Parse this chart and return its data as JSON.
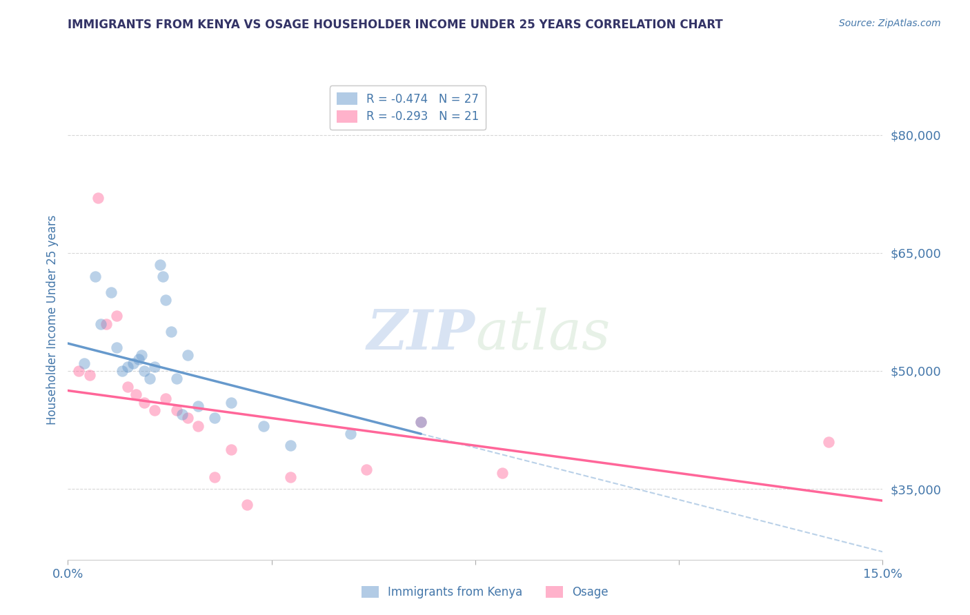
{
  "title": "IMMIGRANTS FROM KENYA VS OSAGE HOUSEHOLDER INCOME UNDER 25 YEARS CORRELATION CHART",
  "source": "Source: ZipAtlas.com",
  "ylabel": "Householder Income Under 25 years",
  "ytick_labels": [
    "$35,000",
    "$50,000",
    "$65,000",
    "$80,000"
  ],
  "ytick_values": [
    35000,
    50000,
    65000,
    80000
  ],
  "xlim": [
    0.0,
    15.0
  ],
  "ylim": [
    26000,
    87000
  ],
  "legend_blue_label": "R = -0.474   N = 27",
  "legend_pink_label": "R = -0.293   N = 21",
  "legend_blue_label_short": "Immigrants from Kenya",
  "legend_pink_label_short": "Osage",
  "blue_color": "#6699CC",
  "pink_color": "#FF6699",
  "title_color": "#333366",
  "axis_label_color": "#4477AA",
  "blue_scatter_x": [
    0.3,
    0.5,
    0.6,
    0.8,
    0.9,
    1.0,
    1.1,
    1.2,
    1.3,
    1.35,
    1.4,
    1.5,
    1.6,
    1.7,
    1.75,
    1.8,
    1.9,
    2.0,
    2.1,
    2.2,
    2.4,
    2.7,
    3.0,
    3.6,
    4.1,
    5.2,
    6.5
  ],
  "blue_scatter_y": [
    51000,
    62000,
    56000,
    60000,
    53000,
    50000,
    50500,
    51000,
    51500,
    52000,
    50000,
    49000,
    50500,
    63500,
    62000,
    59000,
    55000,
    49000,
    44500,
    52000,
    45500,
    44000,
    46000,
    43000,
    40500,
    42000,
    43500
  ],
  "pink_scatter_x": [
    0.2,
    0.4,
    0.55,
    0.7,
    0.9,
    1.1,
    1.25,
    1.4,
    1.6,
    1.8,
    2.0,
    2.2,
    2.4,
    2.7,
    3.0,
    3.3,
    4.1,
    5.5,
    6.5,
    8.0,
    14.0
  ],
  "pink_scatter_y": [
    50000,
    49500,
    72000,
    56000,
    57000,
    48000,
    47000,
    46000,
    45000,
    46500,
    45000,
    44000,
    43000,
    36500,
    40000,
    33000,
    36500,
    37500,
    43500,
    37000,
    41000
  ],
  "blue_line_x0": 0.0,
  "blue_line_y0": 53500,
  "blue_line_x1": 6.5,
  "blue_line_y1": 42000,
  "pink_line_x0": 0.0,
  "pink_line_y0": 47500,
  "pink_line_x1": 15.0,
  "pink_line_y1": 33500,
  "blue_dashed_x0": 6.5,
  "blue_dashed_y0": 42000,
  "blue_dashed_x1": 15.0,
  "blue_dashed_y1": 27000,
  "watermark_zip": "ZIP",
  "watermark_atlas": "atlas",
  "background_color": "#FFFFFF",
  "grid_color": "#CCCCCC"
}
